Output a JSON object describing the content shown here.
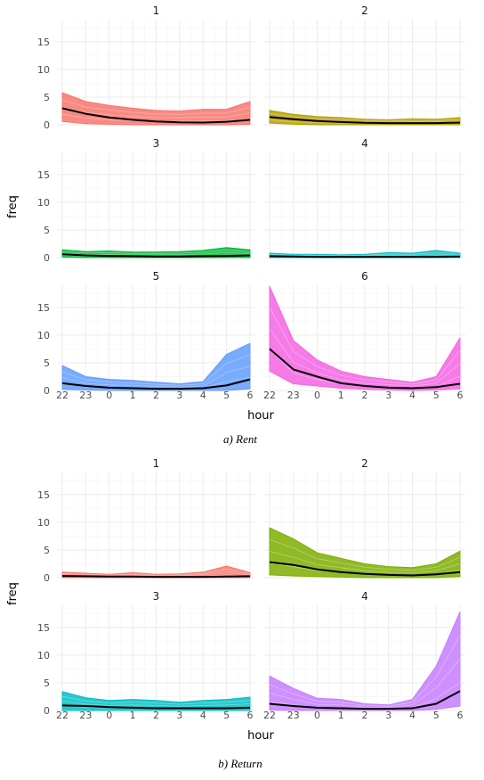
{
  "chart_data": [
    {
      "type": "line",
      "caption": "a)  Rent",
      "xlabel": "hour",
      "ylabel": "freq",
      "x": [
        "22",
        "23",
        "0",
        "1",
        "2",
        "3",
        "4",
        "5",
        "6"
      ],
      "ylim": [
        0,
        19
      ],
      "yticks": [
        0,
        5,
        10,
        15
      ],
      "panels": [
        {
          "label": "1",
          "color": "#F8766D",
          "band_top": [
            5.8,
            4.2,
            3.5,
            3.0,
            2.6,
            2.5,
            2.8,
            2.8,
            4.2
          ],
          "band_bottom": [
            0.6,
            0.2,
            0.1,
            0.0,
            0.0,
            0.0,
            0.0,
            0.0,
            0.1
          ],
          "mean": [
            3.0,
            2.0,
            1.3,
            0.9,
            0.6,
            0.45,
            0.4,
            0.55,
            0.9
          ]
        },
        {
          "label": "2",
          "color": "#B79F00",
          "band_top": [
            2.6,
            1.9,
            1.5,
            1.3,
            1.0,
            0.9,
            1.1,
            1.0,
            1.3
          ],
          "band_bottom": [
            0.3,
            0.1,
            0.0,
            0.0,
            0.0,
            0.0,
            0.0,
            0.0,
            0.0
          ],
          "mean": [
            1.4,
            1.0,
            0.7,
            0.5,
            0.35,
            0.3,
            0.3,
            0.3,
            0.4
          ]
        },
        {
          "label": "3",
          "color": "#00BA38",
          "band_top": [
            1.4,
            1.1,
            1.2,
            1.0,
            1.0,
            1.1,
            1.3,
            1.8,
            1.4
          ],
          "band_bottom": [
            0.1,
            0.0,
            0.0,
            0.0,
            0.0,
            0.0,
            0.0,
            0.0,
            0.0
          ],
          "mean": [
            0.6,
            0.4,
            0.3,
            0.25,
            0.2,
            0.2,
            0.25,
            0.3,
            0.4
          ]
        },
        {
          "label": "4",
          "color": "#00BFC4",
          "band_top": [
            0.8,
            0.6,
            0.6,
            0.5,
            0.6,
            0.9,
            0.8,
            1.3,
            0.8
          ],
          "band_bottom": [
            0.0,
            0.0,
            0.0,
            0.0,
            0.0,
            0.0,
            0.0,
            0.0,
            0.0
          ],
          "mean": [
            0.25,
            0.2,
            0.15,
            0.15,
            0.15,
            0.15,
            0.15,
            0.15,
            0.2
          ]
        },
        {
          "label": "5",
          "color": "#619CFF",
          "band_top": [
            4.5,
            2.5,
            2.0,
            1.8,
            1.5,
            1.2,
            1.6,
            6.5,
            8.5
          ],
          "band_bottom": [
            0.2,
            0.1,
            0.0,
            0.0,
            0.0,
            0.0,
            0.0,
            0.0,
            0.3
          ],
          "mean": [
            1.3,
            0.8,
            0.5,
            0.4,
            0.3,
            0.3,
            0.4,
            0.9,
            2.0
          ]
        },
        {
          "label": "6",
          "color": "#F564E3",
          "band_top": [
            18.8,
            9.0,
            5.5,
            3.5,
            2.5,
            2.0,
            1.5,
            2.5,
            9.5
          ],
          "band_bottom": [
            3.5,
            1.2,
            0.8,
            0.4,
            0.2,
            0.1,
            0.0,
            0.1,
            0.3
          ],
          "mean": [
            7.5,
            3.8,
            2.5,
            1.3,
            0.8,
            0.5,
            0.4,
            0.6,
            1.2
          ]
        }
      ]
    },
    {
      "type": "line",
      "caption": "b)  Return",
      "xlabel": "hour",
      "ylabel": "freq",
      "x": [
        "22",
        "23",
        "0",
        "1",
        "2",
        "3",
        "4",
        "5",
        "6"
      ],
      "ylim": [
        0,
        19
      ],
      "yticks": [
        0,
        5,
        10,
        15
      ],
      "panels": [
        {
          "label": "1",
          "color": "#F8766D",
          "band_top": [
            1.0,
            0.8,
            0.6,
            0.9,
            0.6,
            0.7,
            1.0,
            2.1,
            0.9
          ],
          "band_bottom": [
            0.0,
            0.0,
            0.0,
            0.0,
            0.0,
            0.0,
            0.0,
            0.0,
            0.0
          ],
          "mean": [
            0.3,
            0.25,
            0.2,
            0.2,
            0.15,
            0.15,
            0.15,
            0.2,
            0.25
          ]
        },
        {
          "label": "2",
          "color": "#7CAE00",
          "band_top": [
            9.0,
            7.0,
            4.5,
            3.5,
            2.5,
            2.0,
            1.8,
            2.5,
            4.8
          ],
          "band_bottom": [
            0.5,
            0.3,
            0.2,
            0.1,
            0.0,
            0.0,
            0.0,
            0.0,
            0.2
          ],
          "mean": [
            2.8,
            2.3,
            1.5,
            1.0,
            0.7,
            0.5,
            0.4,
            0.6,
            1.0
          ]
        },
        {
          "label": "3",
          "color": "#00BFC4",
          "band_top": [
            3.4,
            2.3,
            1.8,
            2.0,
            1.8,
            1.5,
            1.8,
            2.0,
            2.4
          ],
          "band_bottom": [
            0.0,
            0.0,
            0.0,
            0.0,
            0.0,
            0.0,
            0.0,
            0.0,
            0.0
          ],
          "mean": [
            0.9,
            0.8,
            0.6,
            0.5,
            0.4,
            0.4,
            0.4,
            0.4,
            0.5
          ]
        },
        {
          "label": "4",
          "color": "#C77CFF",
          "band_top": [
            6.2,
            4.0,
            2.2,
            2.0,
            1.2,
            1.0,
            2.0,
            8.0,
            17.8
          ],
          "band_bottom": [
            0.1,
            0.0,
            0.0,
            0.0,
            0.0,
            0.0,
            0.0,
            0.2,
            0.8
          ],
          "mean": [
            1.2,
            0.8,
            0.5,
            0.4,
            0.3,
            0.3,
            0.4,
            1.2,
            3.5
          ]
        }
      ]
    }
  ]
}
